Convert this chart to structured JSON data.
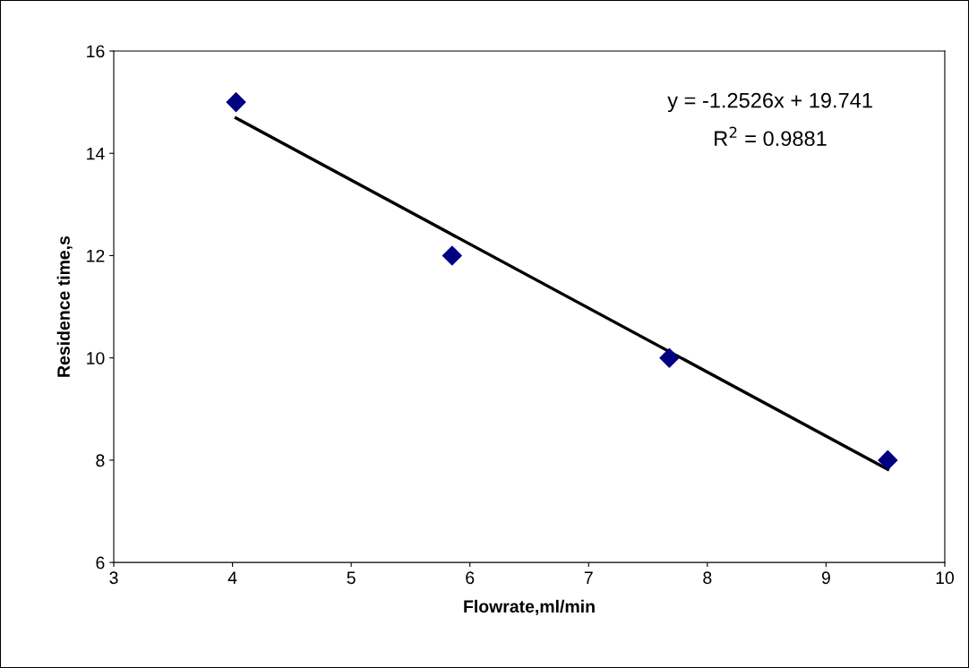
{
  "chart_data": {
    "type": "scatter",
    "xlabel": "Flowrate,ml/min",
    "ylabel": "Residence time,s",
    "series": [
      {
        "x": [
          4.03,
          5.85,
          7.68,
          9.52
        ],
        "values": [
          15,
          12,
          10,
          8
        ],
        "color": "#000080",
        "marker": "diamond"
      },
      {
        "type": "line",
        "x": [
          4.03,
          9.52
        ],
        "values": [
          14.69,
          7.82
        ],
        "color": "#000000",
        "marker": "none",
        "line_style": "solid"
      }
    ],
    "annotations": [
      "y = -1.2526x + 19.741",
      "R$^{2}$ = 0.9881"
    ],
    "xlim": [
      3,
      10
    ],
    "xticks": [
      3,
      4,
      5,
      6,
      7,
      8,
      9,
      10
    ],
    "ylim": [
      6,
      16
    ],
    "yticks": [
      6,
      8,
      10,
      12,
      14,
      16
    ],
    "grid": false,
    "legend": false
  }
}
